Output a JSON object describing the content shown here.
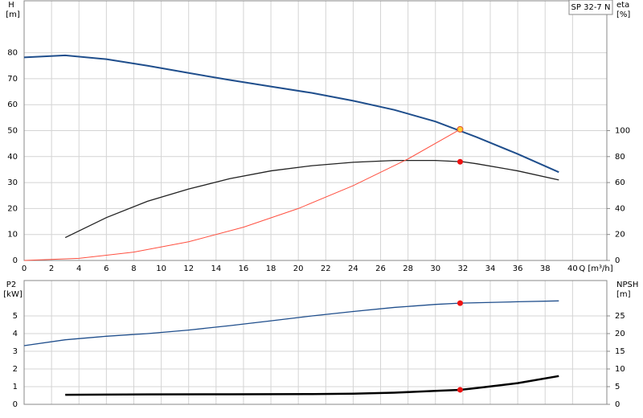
{
  "chart_data": [
    {
      "type": "line",
      "label": "SP 32-7 N",
      "y_label": "H",
      "y_unit": "[m]",
      "y2_label": "eta",
      "y2_unit": "[%]",
      "x_label": "Q [m³/h]",
      "xlim": [
        0,
        42.5
      ],
      "xticks": [
        0,
        2,
        4,
        6,
        8,
        10,
        12,
        14,
        16,
        18,
        20,
        22,
        24,
        26,
        28,
        30,
        32,
        34,
        36,
        38,
        40
      ],
      "ylim": [
        0,
        100
      ],
      "yticks": [
        0,
        10,
        20,
        30,
        40,
        50,
        60,
        70,
        80
      ],
      "y2lim": [
        0,
        200
      ],
      "y2ticks": [
        0,
        20,
        40,
        60,
        80,
        100
      ],
      "grid": true,
      "series": [
        {
          "color": "#1f4e8c",
          "width": 2,
          "axis": "y",
          "x": [
            0,
            3,
            6,
            9,
            12,
            15,
            18,
            21,
            24,
            27,
            30,
            33,
            36,
            39
          ],
          "values": [
            78.2,
            79,
            77.5,
            75,
            72.2,
            69.5,
            67,
            64.5,
            61.5,
            58,
            53.5,
            47.5,
            41,
            34
          ]
        },
        {
          "color": "#222222",
          "width": 1.3,
          "axis": "y2",
          "x": [
            3,
            6,
            9,
            12,
            15,
            18,
            21,
            24,
            27,
            30,
            32,
            33,
            36,
            39
          ],
          "values": [
            17.6,
            33,
            45.6,
            55,
            63,
            69,
            73,
            75.6,
            77,
            77,
            76,
            74.5,
            69,
            62
          ]
        },
        {
          "color": "#ff5040",
          "width": 1,
          "axis": "y",
          "x": [
            0,
            4,
            8,
            12,
            16,
            20,
            24,
            28,
            31.8
          ],
          "values": [
            0,
            0.8,
            3.2,
            7.2,
            12.8,
            20,
            28.8,
            39.1,
            50.5
          ]
        }
      ],
      "points": [
        {
          "x": 31.8,
          "y": 50.5,
          "axis": "y",
          "color": "#ffd030"
        },
        {
          "x": 31.8,
          "y": 76,
          "axis": "y2",
          "color": "#ee1111"
        }
      ]
    },
    {
      "type": "line",
      "y_label": "P2",
      "y_unit": "[kW]",
      "y2_label": "NPSH",
      "y2_unit": "[m]",
      "xlim": [
        0,
        42.5
      ],
      "xticks": [
        0,
        2,
        4,
        6,
        8,
        10,
        12,
        14,
        16,
        18,
        20,
        22,
        24,
        26,
        28,
        30,
        32,
        34,
        36,
        38,
        40
      ],
      "ylim": [
        0,
        7
      ],
      "yticks": [
        0,
        1,
        2,
        3,
        4,
        5
      ],
      "y2lim": [
        0,
        35
      ],
      "y2ticks": [
        0,
        5,
        10,
        15,
        20,
        25
      ],
      "grid": true,
      "series": [
        {
          "color": "#1f4e8c",
          "width": 1.3,
          "axis": "y",
          "x": [
            0,
            3,
            6,
            9,
            12,
            15,
            18,
            21,
            24,
            27,
            30,
            31.8,
            36,
            39
          ],
          "values": [
            3.32,
            3.65,
            3.85,
            4.0,
            4.2,
            4.45,
            4.72,
            5.0,
            5.25,
            5.48,
            5.65,
            5.72,
            5.8,
            5.85
          ]
        },
        {
          "color": "#000000",
          "width": 2.5,
          "axis": "y2",
          "x": [
            3,
            9,
            15,
            21,
            24,
            27,
            30,
            31.8,
            33,
            36,
            39
          ],
          "values": [
            2.7,
            2.8,
            2.85,
            2.9,
            3.0,
            3.3,
            3.8,
            4.1,
            4.6,
            6.0,
            8.0
          ]
        }
      ],
      "points": [
        {
          "x": 31.8,
          "y": 5.72,
          "axis": "y",
          "color": "#ee1111"
        },
        {
          "x": 31.8,
          "y": 4.1,
          "axis": "y2",
          "color": "#ee1111"
        }
      ]
    }
  ]
}
